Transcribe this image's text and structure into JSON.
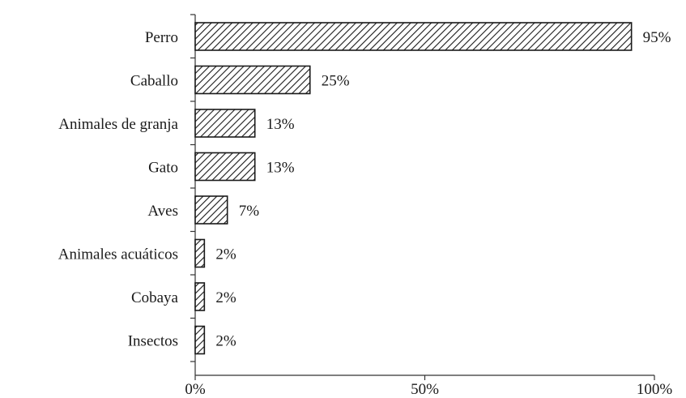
{
  "chart_data": {
    "type": "bar",
    "orientation": "horizontal",
    "categories": [
      "Perro",
      "Caballo",
      "Animales de granja",
      "Gato",
      "Aves",
      "Animales acuáticos",
      "Cobaya",
      "Insectos"
    ],
    "values": [
      95,
      25,
      13,
      13,
      7,
      2,
      2,
      2
    ],
    "value_labels": [
      "95%",
      "25%",
      "13%",
      "13%",
      "7%",
      "2%",
      "2%",
      "2%"
    ],
    "x_ticks": [
      0,
      50,
      100
    ],
    "x_tick_labels": [
      "0%",
      "50%",
      "100%"
    ],
    "xlim": [
      0,
      100
    ],
    "title": "",
    "xlabel": "",
    "ylabel": "",
    "grid": false,
    "legend": "none",
    "bar_fill": "diagonal-hatch",
    "colors": {
      "stroke": "#1a1a1a",
      "fill": "#ffffff",
      "text": "#1a1a1a"
    }
  }
}
